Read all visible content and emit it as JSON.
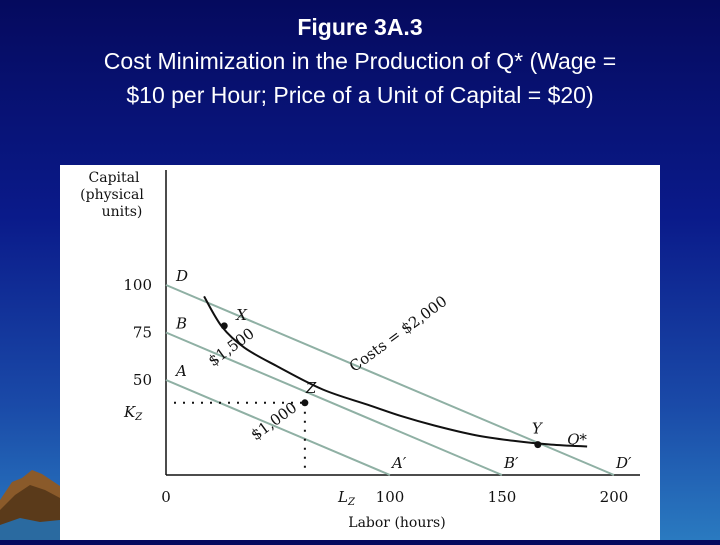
{
  "slide": {
    "title_line1": "Figure 3A.3",
    "title_line2": "Cost Minimization in the Production of Q* (Wage =",
    "title_line3": "$10 per Hour; Price of a Unit of Capital = $20)"
  },
  "chart_data": {
    "type": "line",
    "title": "",
    "xlabel": "Labor (hours)",
    "ylabel_lines": [
      "Capital",
      "(physical",
      "units)"
    ],
    "xlim": [
      0,
      200
    ],
    "ylim": [
      0,
      100
    ],
    "x_ticks": [
      {
        "value": 0,
        "label": "0"
      },
      {
        "value": 100,
        "label": "100"
      },
      {
        "value": 150,
        "label": "150"
      },
      {
        "value": 200,
        "label": "200"
      }
    ],
    "y_ticks": [
      {
        "value": 100,
        "label": "100"
      },
      {
        "value": 75,
        "label": "75"
      },
      {
        "value": 50,
        "label": "50"
      }
    ],
    "lz_label": "L",
    "lz_sub": "Z",
    "kz_label": "K",
    "kz_sub": "Z",
    "isocost_lines": [
      {
        "label": "$1,000",
        "start": "A",
        "end": "A′",
        "points": [
          [
            0,
            50
          ],
          [
            100,
            0
          ]
        ]
      },
      {
        "label": "Costs = $2,000",
        "start": "D",
        "end": "D′",
        "points": [
          [
            0,
            100
          ],
          [
            200,
            0
          ]
        ]
      },
      {
        "label": "$1,500",
        "start": "B",
        "end": "B′",
        "points": [
          [
            0,
            75
          ],
          [
            150,
            0
          ]
        ]
      }
    ],
    "isoquant": {
      "name": "Q*",
      "points": [
        [
          17,
          94
        ],
        [
          25,
          78
        ],
        [
          35,
          67
        ],
        [
          50,
          57
        ],
        [
          70,
          45
        ],
        [
          90,
          37
        ],
        [
          105,
          31
        ],
        [
          120,
          26
        ],
        [
          138,
          21
        ],
        [
          155,
          18
        ],
        [
          172,
          16
        ],
        [
          188,
          15
        ]
      ]
    },
    "points": [
      {
        "name": "X",
        "x": 26,
        "y": 78.5
      },
      {
        "name": "Z",
        "x": 62,
        "y": 38
      },
      {
        "name": "Y",
        "x": 166,
        "y": 16
      }
    ]
  }
}
